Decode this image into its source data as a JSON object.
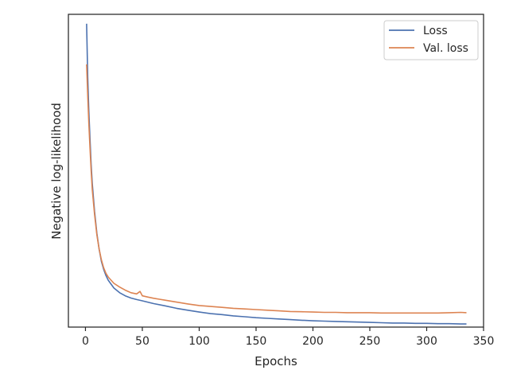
{
  "chart_data": {
    "type": "line",
    "title": "",
    "xlabel": "Epochs",
    "ylabel": "Negative log-likelihood",
    "xlim": [
      -15,
      350
    ],
    "ylim": [
      0,
      1
    ],
    "xticks": [
      0,
      50,
      100,
      150,
      200,
      250,
      300,
      350
    ],
    "yticks": [],
    "grid": false,
    "legend_position": "top-right",
    "series": [
      {
        "name": "Loss",
        "color": "#4c72b0",
        "x": [
          1,
          2,
          3,
          4,
          5,
          6,
          8,
          10,
          12,
          14,
          16,
          18,
          20,
          25,
          30,
          35,
          40,
          45,
          50,
          60,
          70,
          80,
          90,
          100,
          110,
          120,
          130,
          140,
          150,
          160,
          170,
          180,
          190,
          200,
          210,
          220,
          230,
          240,
          250,
          260,
          270,
          280,
          290,
          300,
          310,
          320,
          330,
          335
        ],
        "y": [
          0.97,
          0.8,
          0.69,
          0.6,
          0.52,
          0.46,
          0.37,
          0.3,
          0.25,
          0.21,
          0.185,
          0.165,
          0.15,
          0.125,
          0.11,
          0.1,
          0.093,
          0.088,
          0.084,
          0.075,
          0.068,
          0.06,
          0.054,
          0.048,
          0.043,
          0.04,
          0.036,
          0.033,
          0.03,
          0.028,
          0.026,
          0.024,
          0.022,
          0.02,
          0.019,
          0.018,
          0.017,
          0.016,
          0.015,
          0.014,
          0.013,
          0.013,
          0.012,
          0.012,
          0.011,
          0.011,
          0.01,
          0.01
        ]
      },
      {
        "name": "Val. loss",
        "color": "#dd8452",
        "x": [
          1,
          2,
          3,
          4,
          5,
          6,
          8,
          10,
          12,
          14,
          16,
          18,
          20,
          25,
          30,
          35,
          40,
          45,
          48,
          50,
          55,
          60,
          65,
          70,
          80,
          90,
          100,
          110,
          120,
          130,
          140,
          150,
          160,
          170,
          180,
          190,
          200,
          210,
          220,
          230,
          240,
          250,
          260,
          270,
          280,
          290,
          300,
          310,
          320,
          330,
          335
        ],
        "y": [
          0.84,
          0.74,
          0.65,
          0.57,
          0.5,
          0.44,
          0.36,
          0.295,
          0.25,
          0.215,
          0.19,
          0.172,
          0.16,
          0.14,
          0.128,
          0.118,
          0.11,
          0.106,
          0.114,
          0.1,
          0.096,
          0.092,
          0.089,
          0.086,
          0.08,
          0.074,
          0.069,
          0.066,
          0.063,
          0.06,
          0.058,
          0.056,
          0.054,
          0.052,
          0.05,
          0.049,
          0.048,
          0.047,
          0.047,
          0.046,
          0.046,
          0.046,
          0.045,
          0.045,
          0.045,
          0.045,
          0.045,
          0.045,
          0.046,
          0.047,
          0.046
        ]
      }
    ]
  }
}
